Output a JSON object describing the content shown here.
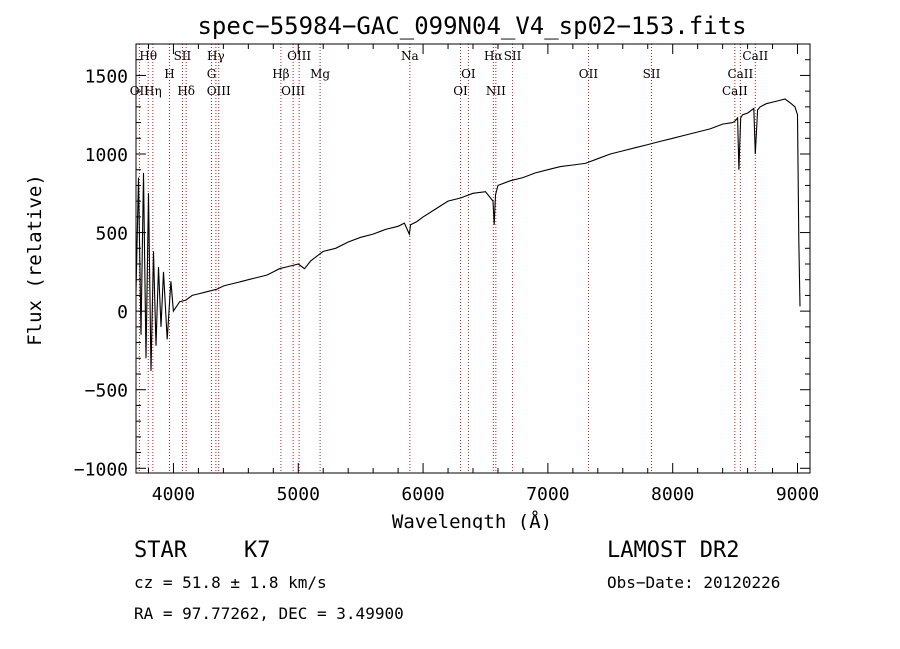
{
  "chart_data": {
    "type": "line",
    "title": "spec−55984−GAC_099N04_V4_sp02−153.fits",
    "xlabel": "Wavelength (Å)",
    "ylabel": "Flux (relative)",
    "xlim": [
      3700,
      9100
    ],
    "ylim": [
      -1030,
      1700
    ],
    "xticks": [
      4000,
      5000,
      6000,
      7000,
      8000,
      9000
    ],
    "xtick_labels": [
      "4000",
      "5000",
      "6000",
      "7000",
      "8000",
      "9000"
    ],
    "yticks": [
      -1000,
      -500,
      0,
      500,
      1000,
      1500
    ],
    "ytick_labels": [
      "−1000",
      "−500",
      "0",
      "500",
      "1000",
      "1500"
    ],
    "grid": false,
    "series": [
      {
        "name": "spectrum",
        "x": [
          3700,
          3720,
          3740,
          3760,
          3780,
          3800,
          3820,
          3840,
          3860,
          3880,
          3900,
          3920,
          3950,
          3980,
          4000,
          4050,
          4100,
          4150,
          4200,
          4250,
          4300,
          4350,
          4400,
          4450,
          4500,
          4550,
          4600,
          4650,
          4700,
          4750,
          4800,
          4850,
          4900,
          4950,
          5000,
          5050,
          5100,
          5150,
          5200,
          5300,
          5400,
          5500,
          5600,
          5700,
          5800,
          5850,
          5890,
          5900,
          5950,
          6000,
          6100,
          6200,
          6300,
          6400,
          6500,
          6560,
          6570,
          6580,
          6600,
          6700,
          6800,
          6900,
          7000,
          7100,
          7200,
          7300,
          7400,
          7500,
          7600,
          7700,
          7800,
          7900,
          8000,
          8100,
          8200,
          8300,
          8400,
          8480,
          8500,
          8520,
          8530,
          8545,
          8560,
          8600,
          8650,
          8662,
          8680,
          8700,
          8750,
          8800,
          8850,
          8900,
          8950,
          8980,
          9000,
          9010,
          9020
        ],
        "values": [
          120,
          850,
          -150,
          880,
          -300,
          750,
          -380,
          380,
          -220,
          280,
          -100,
          250,
          -180,
          190,
          0,
          60,
          70,
          100,
          110,
          120,
          130,
          140,
          160,
          170,
          180,
          190,
          200,
          210,
          220,
          230,
          250,
          270,
          280,
          290,
          300,
          270,
          320,
          350,
          380,
          400,
          440,
          470,
          490,
          520,
          540,
          560,
          490,
          550,
          570,
          600,
          650,
          700,
          720,
          750,
          760,
          700,
          550,
          740,
          800,
          830,
          850,
          880,
          900,
          920,
          930,
          940,
          970,
          1000,
          1020,
          1040,
          1060,
          1080,
          1100,
          1120,
          1140,
          1160,
          1190,
          1200,
          1210,
          1230,
          900,
          1230,
          1250,
          1260,
          1290,
          1000,
          1280,
          1300,
          1320,
          1330,
          1340,
          1350,
          1320,
          1300,
          1250,
          450,
          30
        ]
      }
    ],
    "lines": [
      {
        "name": "Hθ",
        "x": 3798,
        "row": 0
      },
      {
        "name": "OII",
        "x": 3727,
        "row": 2
      },
      {
        "name": "Hη",
        "x": 3835,
        "row": 2
      },
      {
        "name": "H",
        "x": 3968,
        "row": 1
      },
      {
        "name": "SII",
        "x": 4072,
        "row": 0
      },
      {
        "name": "Hδ",
        "x": 4102,
        "row": 2
      },
      {
        "name": "Hγ",
        "x": 4340,
        "row": 0
      },
      {
        "name": "G",
        "x": 4305,
        "row": 1
      },
      {
        "name": "OIII",
        "x": 4363,
        "row": 2
      },
      {
        "name": "OIII",
        "x": 5007,
        "row": 0
      },
      {
        "name": "Hβ",
        "x": 4861,
        "row": 1
      },
      {
        "name": "OIII",
        "x": 4959,
        "row": 2
      },
      {
        "name": "Mg",
        "x": 5175,
        "row": 1
      },
      {
        "name": "Na",
        "x": 5894,
        "row": 0
      },
      {
        "name": "OI",
        "x": 6363,
        "row": 1
      },
      {
        "name": "OI",
        "x": 6300,
        "row": 2
      },
      {
        "name": "Hα",
        "x": 6563,
        "row": 0
      },
      {
        "name": "SII",
        "x": 6717,
        "row": 0
      },
      {
        "name": "NII",
        "x": 6583,
        "row": 2
      },
      {
        "name": "OII",
        "x": 7325,
        "row": 1
      },
      {
        "name": "SII",
        "x": 7830,
        "row": 1
      },
      {
        "name": "CaII",
        "x": 8662,
        "row": 0
      },
      {
        "name": "CaII",
        "x": 8542,
        "row": 1
      },
      {
        "name": "CaII",
        "x": 8498,
        "row": 2
      }
    ]
  },
  "info": {
    "object_class": "STAR",
    "subclass": "K7",
    "survey": "LAMOST DR2",
    "cz": "cz = 51.8 ± 1.8 km/s",
    "obs_date": "Obs−Date: 20120226",
    "coords": "RA =  97.77262, DEC =   3.49900"
  },
  "colors": {
    "line_marker": "#b22222",
    "spectrum": "#000000",
    "axes": "#000000"
  }
}
